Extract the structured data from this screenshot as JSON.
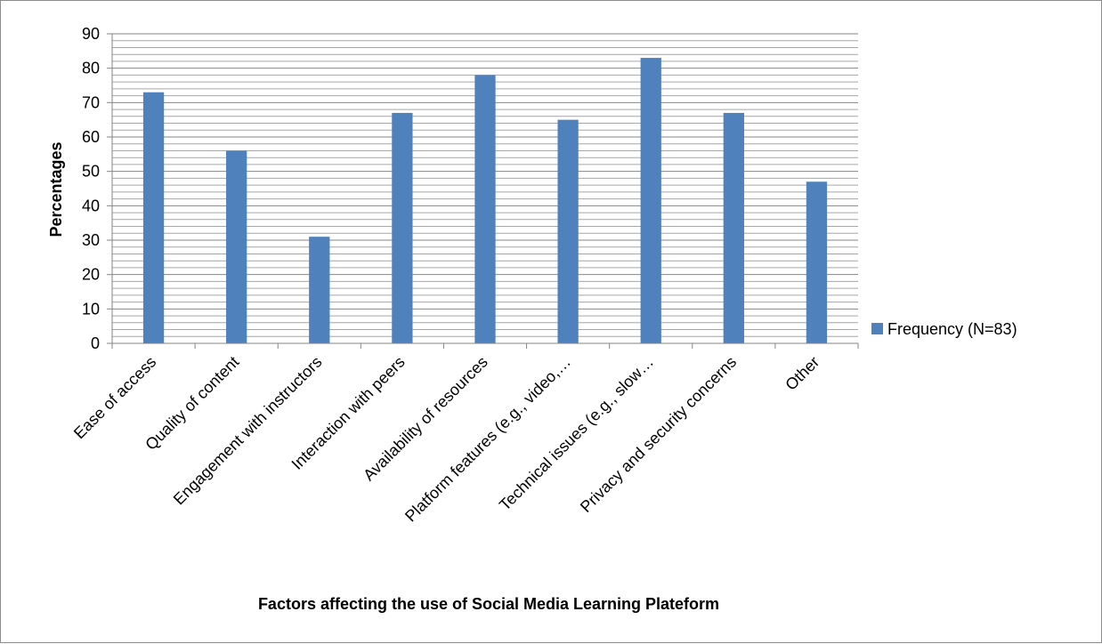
{
  "chart_data": {
    "type": "bar",
    "title": "",
    "xlabel": "Factors  affecting the use of Social Media  Learning Plateform",
    "ylabel": "Percentages",
    "ylim": [
      0,
      90
    ],
    "ytick_step": 10,
    "minor_grid_step": 2,
    "grid": true,
    "legend_position": "right",
    "categories": [
      "Ease of access",
      "Quality of content",
      "Engagement with instructors",
      "Interaction with peers",
      "Availability of resources",
      "Platform features (e.g., video,…",
      "Technical issues (e.g., slow…",
      "Privacy and security concerns",
      "Other"
    ],
    "series": [
      {
        "name": "Frequency (N=83)",
        "color": "#4f81bd",
        "values": [
          73,
          56,
          31,
          67,
          78,
          65,
          83,
          67,
          47
        ]
      }
    ]
  }
}
